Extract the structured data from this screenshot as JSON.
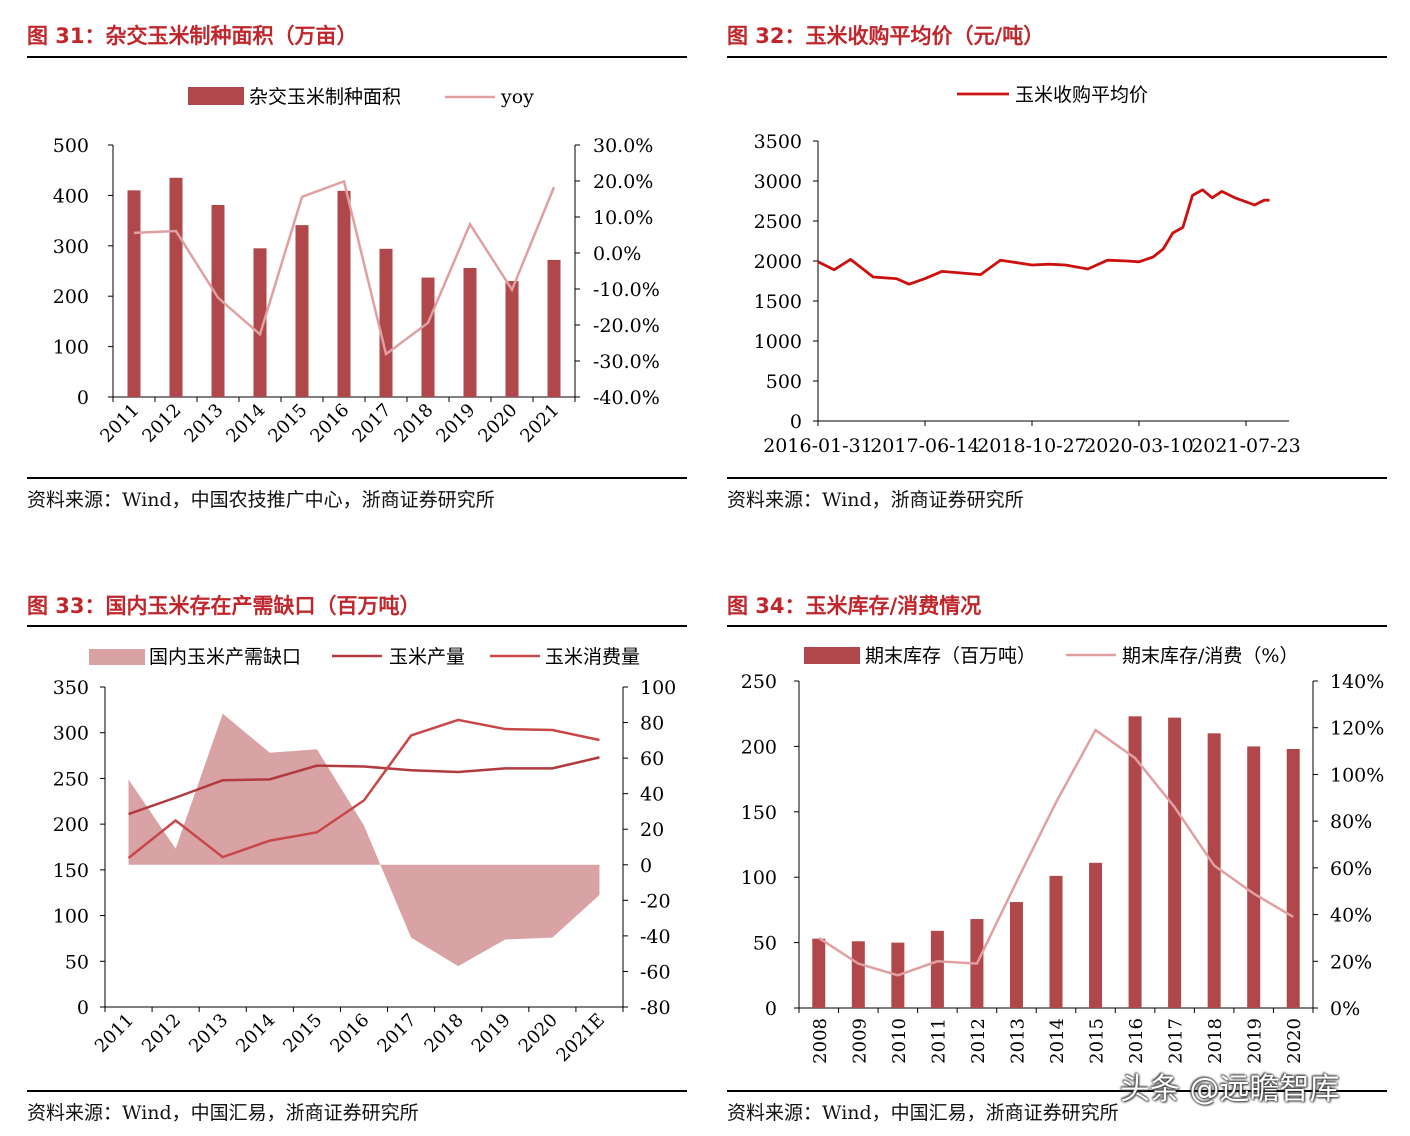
{
  "charts": {
    "c31": {
      "title": "图 31：杂交玉米制种面积（万亩）",
      "source": "资料来源：Wind，中国农技推广中心，浙商证券研究所",
      "chart_data": {
        "type": "bar",
        "categories": [
          "2011",
          "2012",
          "2013",
          "2014",
          "2015",
          "2016",
          "2017",
          "2018",
          "2019",
          "2020",
          "2021"
        ],
        "series": [
          {
            "name": "杂交玉米制种面积",
            "type": "bar",
            "axis": "left",
            "values": [
              410,
              435,
              381,
              295,
              341,
              409,
              294,
              237,
              256,
              230,
              272
            ]
          },
          {
            "name": "yoy",
            "type": "line",
            "axis": "right",
            "values": [
              5.6,
              6.1,
              -12.4,
              -22.6,
              15.6,
              19.9,
              -28.1,
              -19.4,
              8.0,
              -10.2,
              18.3
            ]
          }
        ],
        "ylim_left": [
          0,
          500
        ],
        "ylim_right": [
          -40,
          30
        ],
        "yticks_left": [
          "500",
          "400",
          "300",
          "200",
          "100",
          "0"
        ],
        "yticks_right": [
          "30.0%",
          "20.0%",
          "10.0%",
          "0.0%",
          "-10.0%",
          "-20.0%",
          "-30.0%",
          "-40.0%"
        ],
        "legend": "top-center"
      }
    },
    "c32": {
      "title": "图 32：玉米收购平均价（元/吨）",
      "source": "资料来源：Wind，浙商证券研究所",
      "chart_data": {
        "type": "line",
        "series": [
          {
            "name": "玉米收购平均价",
            "x": [
              "2016-01-31",
              "2016-04-15",
              "2016-07-01",
              "2016-10-15",
              "2017-01-31",
              "2017-04-01",
              "2017-06-14",
              "2017-09-01",
              "2017-12-01",
              "2018-03-01",
              "2018-06-01",
              "2018-10-27",
              "2019-01-15",
              "2019-04-01",
              "2019-07-15",
              "2019-10-15",
              "2020-01-15",
              "2020-03-10",
              "2020-05-15",
              "2020-07-01",
              "2020-08-15",
              "2020-10-01",
              "2020-11-15",
              "2021-01-01",
              "2021-02-15",
              "2021-04-01",
              "2021-06-01",
              "2021-07-23",
              "2021-09-01",
              "2021-10-15",
              "2021-11-10"
            ],
            "values": [
              1990,
              1890,
              2020,
              1800,
              1780,
              1710,
              1780,
              1870,
              1850,
              1830,
              2010,
              1950,
              1960,
              1950,
              1900,
              2010,
              2000,
              1990,
              2050,
              2150,
              2350,
              2420,
              2820,
              2890,
              2790,
              2870,
              2790,
              2740,
              2700,
              2760,
              2760
            ]
          }
        ],
        "xticks": [
          "2016-01-31",
          "2017-06-14",
          "2018-10-27",
          "2020-03-10",
          "2021-07-23"
        ],
        "yticks": [
          "3500",
          "3000",
          "2500",
          "2000",
          "1500",
          "1000",
          "500",
          "0"
        ],
        "ylim": [
          0,
          3500
        ],
        "legend": "top-center"
      }
    },
    "c33": {
      "title": "图 33：国内玉米存在产需缺口（百万吨）",
      "source": "资料来源：Wind，中国汇易，浙商证券研究所",
      "chart_data": {
        "type": "area",
        "categories": [
          "2011",
          "2012",
          "2013",
          "2014",
          "2015",
          "2016",
          "2017",
          "2018",
          "2019",
          "2020",
          "2021E"
        ],
        "series": [
          {
            "name": "国内玉米产需缺口",
            "type": "area",
            "axis": "right",
            "values": [
              48,
              9,
              85,
              63,
              65,
              22,
              -41,
              -57,
              -42,
              -41,
              -17
            ]
          },
          {
            "name": "玉米产量",
            "type": "line",
            "axis": "left",
            "values": [
              211,
              229,
              248,
              249,
              264,
              263,
              259,
              257,
              261,
              261,
              273
            ]
          },
          {
            "name": "玉米消费量",
            "type": "line",
            "axis": "left",
            "values": [
              163,
              204,
              164,
              182,
              191,
              226,
              297,
              314,
              304,
              303,
              292
            ]
          }
        ],
        "ylim_left": [
          0,
          350
        ],
        "ylim_right": [
          -80,
          100
        ],
        "yticks_left": [
          "350",
          "300",
          "250",
          "200",
          "150",
          "100",
          "50",
          "0"
        ],
        "yticks_right": [
          "100",
          "80",
          "60",
          "40",
          "20",
          "0",
          "-20",
          "-40",
          "-60",
          "-80"
        ],
        "legend": "top-center"
      }
    },
    "c34": {
      "title": "图 34：玉米库存/消费情况",
      "source": "资料来源：Wind，中国汇易，浙商证券研究所",
      "chart_data": {
        "type": "bar",
        "categories": [
          "2008",
          "2009",
          "2010",
          "2011",
          "2012",
          "2013",
          "2014",
          "2015",
          "2016",
          "2017",
          "2018",
          "2019",
          "2020"
        ],
        "series": [
          {
            "name": "期末库存（百万吨）",
            "type": "bar",
            "axis": "left",
            "values": [
              53,
              51,
              50,
              59,
              68,
              81,
              101,
              111,
              223,
              222,
              210,
              200,
              198
            ]
          },
          {
            "name": "期末库存/消费（%）",
            "type": "line",
            "axis": "right",
            "values": [
              30,
              19,
              14,
              20,
              19,
              54,
              88,
              119,
              107,
              86,
              61,
              49,
              39
            ]
          }
        ],
        "ylim_left": [
          0,
          250
        ],
        "ylim_right": [
          0,
          140
        ],
        "yticks_left": [
          "250",
          "200",
          "150",
          "100",
          "50",
          "0"
        ],
        "yticks_right": [
          "140%",
          "120%",
          "100%",
          "80%",
          "60%",
          "40%",
          "20%",
          "0%"
        ],
        "legend": "top-center"
      }
    }
  },
  "colors": {
    "title_red": "#c0272d",
    "bar_dark": "#b0474a",
    "line_pink": "#e0a0a2",
    "line_red": "#cc1010",
    "area_fill": "#d9a3a5",
    "line_prod": "#b03a3e",
    "line_cons": "#c8484a"
  },
  "watermark": "头条 @远瞻智库"
}
